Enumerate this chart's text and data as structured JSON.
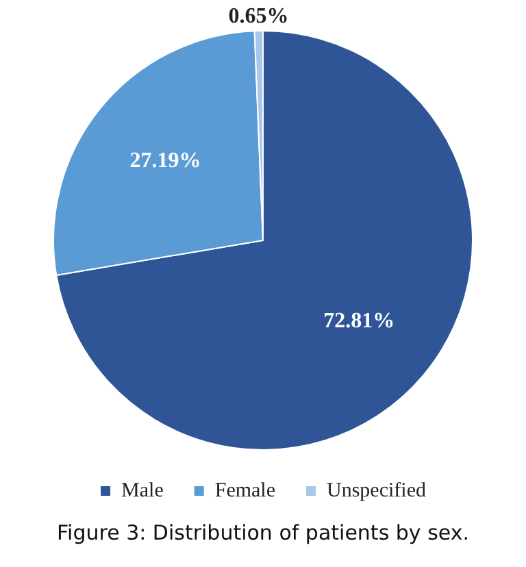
{
  "chart_data": {
    "type": "pie",
    "title": "Figure 3: Distribution of patients by sex.",
    "categories": [
      "Male",
      "Female",
      "Unspecified"
    ],
    "values": [
      72.81,
      27.19,
      0.65
    ],
    "colors": [
      "#2f5597",
      "#5b9bd5",
      "#a9c7e8"
    ],
    "value_labels": [
      "72.81%",
      "27.19%",
      "0.65%"
    ],
    "legend": "bottom"
  }
}
